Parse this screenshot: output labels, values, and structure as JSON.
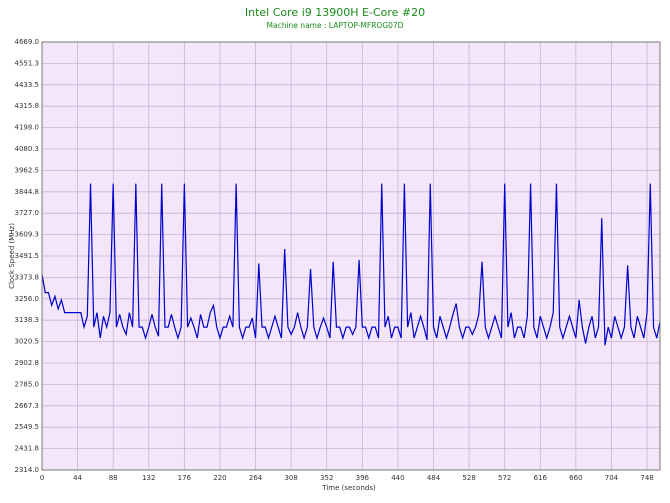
{
  "chart_data": {
    "type": "line",
    "title": "Intel Core i9 13900H E-Core #20",
    "subtitle": "Machine name : LAPTOP-MFROG07D",
    "x_label": "Time (seconds)",
    "y_label": "Clock Speed (MHz)",
    "grid": true,
    "xlim": [
      0,
      764
    ],
    "xticks": [
      0,
      44,
      88,
      132,
      176,
      220,
      264,
      308,
      352,
      396,
      440,
      484,
      528,
      572,
      616,
      660,
      704,
      748
    ],
    "ylim": [
      2314,
      4669
    ],
    "yticks": [
      {
        "value": 2314.0,
        "label": "2314.0"
      },
      {
        "value": 2431.8,
        "label": "2431.8"
      },
      {
        "value": 2549.5,
        "label": "2549.5"
      },
      {
        "value": 2667.3,
        "label": "2667.3"
      },
      {
        "value": 2785.0,
        "label": "2785.0"
      },
      {
        "value": 2902.8,
        "label": "2902.8"
      },
      {
        "value": 3020.5,
        "label": "3020.5"
      },
      {
        "value": 3138.3,
        "label": "3138.3"
      },
      {
        "value": 3256.0,
        "label": "3256.0"
      },
      {
        "value": 3373.8,
        "label": "3373.8"
      },
      {
        "value": 3491.5,
        "label": "3491.5"
      },
      {
        "value": 3609.3,
        "label": "3609.3"
      },
      {
        "value": 3727.0,
        "label": "3727.0"
      },
      {
        "value": 3844.8,
        "label": "3844.8"
      },
      {
        "value": 3962.5,
        "label": "3962.5"
      },
      {
        "value": 4080.3,
        "label": "4080.3"
      },
      {
        "value": 4198.0,
        "label": "4198.0"
      },
      {
        "value": 4315.8,
        "label": "4315.8"
      },
      {
        "value": 4433.5,
        "label": "4433.5"
      },
      {
        "value": 4551.3,
        "label": "4551.3"
      },
      {
        "value": 4669.0,
        "label": "4669.0"
      }
    ],
    "x": [
      0,
      4,
      8,
      12,
      16,
      20,
      24,
      28,
      32,
      36,
      40,
      44,
      48,
      52,
      56,
      60,
      64,
      68,
      72,
      76,
      80,
      84,
      88,
      92,
      96,
      100,
      104,
      108,
      112,
      116,
      120,
      124,
      128,
      132,
      136,
      140,
      144,
      148,
      152,
      156,
      160,
      164,
      168,
      172,
      176,
      180,
      184,
      188,
      192,
      196,
      200,
      204,
      208,
      212,
      216,
      220,
      224,
      228,
      232,
      236,
      240,
      244,
      248,
      252,
      256,
      260,
      264,
      268,
      272,
      276,
      280,
      284,
      288,
      292,
      296,
      300,
      304,
      308,
      312,
      316,
      320,
      324,
      328,
      332,
      336,
      340,
      344,
      348,
      352,
      356,
      360,
      364,
      368,
      372,
      376,
      380,
      384,
      388,
      392,
      396,
      400,
      404,
      408,
      412,
      416,
      420,
      424,
      428,
      432,
      436,
      440,
      444,
      448,
      452,
      456,
      460,
      464,
      468,
      472,
      476,
      480,
      484,
      488,
      492,
      496,
      500,
      504,
      508,
      512,
      516,
      520,
      524,
      528,
      532,
      536,
      540,
      544,
      548,
      552,
      556,
      560,
      564,
      568,
      572,
      576,
      580,
      584,
      588,
      592,
      596,
      600,
      604,
      608,
      612,
      616,
      620,
      624,
      628,
      632,
      636,
      640,
      644,
      648,
      652,
      656,
      660,
      664,
      668,
      672,
      676,
      680,
      684,
      688,
      692,
      696,
      700,
      704,
      708,
      712,
      716,
      720,
      724,
      728,
      732,
      736,
      740,
      744,
      748,
      752,
      756,
      760,
      764
    ],
    "series": [
      {
        "color": "#0000cc",
        "values": [
          3390,
          3290,
          3290,
          3220,
          3270,
          3200,
          3250,
          3180,
          3180,
          3180,
          3180,
          3180,
          3180,
          3100,
          3160,
          3890,
          3100,
          3180,
          3040,
          3160,
          3100,
          3180,
          3890,
          3100,
          3170,
          3100,
          3060,
          3180,
          3100,
          3890,
          3100,
          3100,
          3040,
          3100,
          3170,
          3100,
          3050,
          3890,
          3100,
          3100,
          3170,
          3100,
          3040,
          3100,
          3890,
          3100,
          3150,
          3100,
          3040,
          3170,
          3100,
          3100,
          3180,
          3220,
          3100,
          3040,
          3100,
          3100,
          3160,
          3100,
          3890,
          3100,
          3040,
          3100,
          3100,
          3150,
          3040,
          3450,
          3100,
          3100,
          3040,
          3100,
          3160,
          3100,
          3040,
          3530,
          3100,
          3060,
          3100,
          3180,
          3100,
          3040,
          3100,
          3420,
          3100,
          3040,
          3100,
          3150,
          3100,
          3040,
          3460,
          3100,
          3100,
          3040,
          3100,
          3100,
          3060,
          3100,
          3470,
          3100,
          3100,
          3040,
          3100,
          3100,
          3040,
          3890,
          3100,
          3160,
          3040,
          3100,
          3100,
          3040,
          3890,
          3100,
          3180,
          3040,
          3100,
          3160,
          3100,
          3030,
          3890,
          3100,
          3040,
          3160,
          3100,
          3040,
          3100,
          3170,
          3230,
          3100,
          3040,
          3100,
          3100,
          3060,
          3100,
          3170,
          3460,
          3100,
          3040,
          3100,
          3160,
          3100,
          3040,
          3890,
          3100,
          3180,
          3040,
          3100,
          3100,
          3040,
          3160,
          3890,
          3100,
          3040,
          3160,
          3100,
          3040,
          3100,
          3180,
          3890,
          3100,
          3040,
          3100,
          3160,
          3100,
          3040,
          3250,
          3100,
          3010,
          3100,
          3160,
          3040,
          3100,
          3700,
          3000,
          3100,
          3040,
          3160,
          3100,
          3040,
          3100,
          3440,
          3100,
          3040,
          3160,
          3100,
          3040,
          3180,
          3890,
          3100,
          3040,
          3130
        ]
      }
    ]
  }
}
